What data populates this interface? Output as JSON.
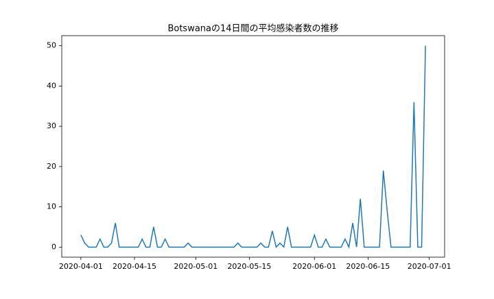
{
  "chart_data": {
    "type": "line",
    "title": "Botswanaの14日間の平均感染者数の推移",
    "x": [
      "2020-04-01",
      "2020-04-02",
      "2020-04-03",
      "2020-04-04",
      "2020-04-05",
      "2020-04-06",
      "2020-04-07",
      "2020-04-08",
      "2020-04-09",
      "2020-04-10",
      "2020-04-11",
      "2020-04-12",
      "2020-04-13",
      "2020-04-14",
      "2020-04-15",
      "2020-04-16",
      "2020-04-17",
      "2020-04-18",
      "2020-04-19",
      "2020-04-20",
      "2020-04-21",
      "2020-04-22",
      "2020-04-23",
      "2020-04-24",
      "2020-04-25",
      "2020-04-26",
      "2020-04-27",
      "2020-04-28",
      "2020-04-29",
      "2020-04-30",
      "2020-05-01",
      "2020-05-02",
      "2020-05-03",
      "2020-05-04",
      "2020-05-05",
      "2020-05-06",
      "2020-05-07",
      "2020-05-08",
      "2020-05-09",
      "2020-05-10",
      "2020-05-11",
      "2020-05-12",
      "2020-05-13",
      "2020-05-14",
      "2020-05-15",
      "2020-05-16",
      "2020-05-17",
      "2020-05-18",
      "2020-05-19",
      "2020-05-20",
      "2020-05-21",
      "2020-05-22",
      "2020-05-23",
      "2020-05-24",
      "2020-05-25",
      "2020-05-26",
      "2020-05-27",
      "2020-05-28",
      "2020-05-29",
      "2020-05-30",
      "2020-05-31",
      "2020-06-01",
      "2020-06-02",
      "2020-06-03",
      "2020-06-04",
      "2020-06-05",
      "2020-06-06",
      "2020-06-07",
      "2020-06-08",
      "2020-06-09",
      "2020-06-10",
      "2020-06-11",
      "2020-06-12",
      "2020-06-13",
      "2020-06-14",
      "2020-06-15",
      "2020-06-16",
      "2020-06-17",
      "2020-06-18",
      "2020-06-19",
      "2020-06-20",
      "2020-06-21",
      "2020-06-22",
      "2020-06-23",
      "2020-06-24",
      "2020-06-25",
      "2020-06-26",
      "2020-06-27",
      "2020-06-28",
      "2020-06-29",
      "2020-06-30"
    ],
    "values": [
      3,
      1,
      0,
      0,
      0,
      2,
      0,
      0,
      1,
      6,
      0,
      0,
      0,
      0,
      0,
      0,
      2,
      0,
      0,
      5,
      0,
      0,
      2,
      0,
      0,
      0,
      0,
      0,
      1,
      0,
      0,
      0,
      0,
      0,
      0,
      0,
      0,
      0,
      0,
      0,
      0,
      1,
      0,
      0,
      0,
      0,
      0,
      1,
      0,
      0,
      4,
      0,
      1,
      0,
      5,
      0,
      0,
      0,
      0,
      0,
      0,
      3,
      0,
      0,
      2,
      0,
      0,
      0,
      0,
      2,
      0,
      6,
      0,
      12,
      0,
      0,
      0,
      0,
      0,
      19,
      9,
      0,
      0,
      0,
      0,
      0,
      0,
      36,
      0,
      0,
      50
    ],
    "color": "#1f77b4",
    "xlim": [
      "2020-03-27",
      "2020-07-05"
    ],
    "xticks": [
      "2020-04-01",
      "2020-04-15",
      "2020-05-01",
      "2020-05-15",
      "2020-06-01",
      "2020-06-15",
      "2020-07-01"
    ],
    "ylim": [
      -2.5,
      52.5
    ],
    "yticks": [
      0,
      10,
      20,
      30,
      40,
      50
    ]
  }
}
